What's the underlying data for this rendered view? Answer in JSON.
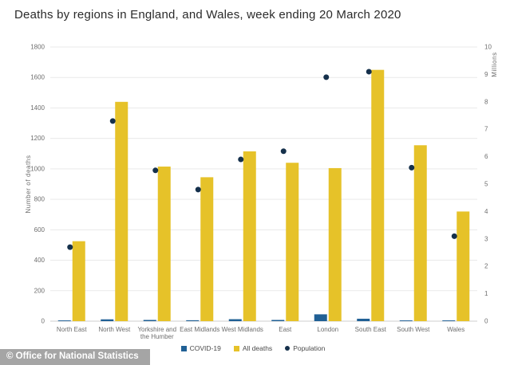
{
  "page": {
    "footer": "© Office for National Statistics"
  },
  "chart_data": {
    "type": "bar",
    "title": "Deaths by regions in England, and Wales, week ending 20 March 2020",
    "categories": [
      "North East",
      "North West",
      "Yorkshire and the Humber",
      "East Midlands",
      "West Midlands",
      "East",
      "London",
      "South East",
      "South West",
      "Wales"
    ],
    "series": [
      {
        "name": "COVID-19",
        "type": "bar",
        "marker": "square",
        "axis": "left",
        "color": "#206095",
        "values": [
          5,
          12,
          8,
          6,
          13,
          8,
          45,
          16,
          5,
          5
        ]
      },
      {
        "name": "All deaths",
        "type": "bar",
        "marker": "square",
        "axis": "left",
        "color": "#E6C229",
        "values": [
          525,
          1440,
          1015,
          945,
          1115,
          1040,
          1005,
          1650,
          1155,
          720
        ]
      },
      {
        "name": "Population",
        "type": "scatter",
        "marker": "dot",
        "axis": "right",
        "color": "#15304B",
        "values": [
          2.7,
          7.3,
          5.5,
          4.8,
          5.9,
          6.2,
          8.9,
          9.1,
          5.6,
          3.1
        ]
      }
    ],
    "ylabel_left": "Number of deaths",
    "ylim_left": [
      0,
      1800
    ],
    "ytick_step_left": 200,
    "ylabel_right": "Millions",
    "ylim_right": [
      0,
      10
    ],
    "ytick_step_right": 1,
    "grid": true,
    "legend_position": "bottom"
  }
}
